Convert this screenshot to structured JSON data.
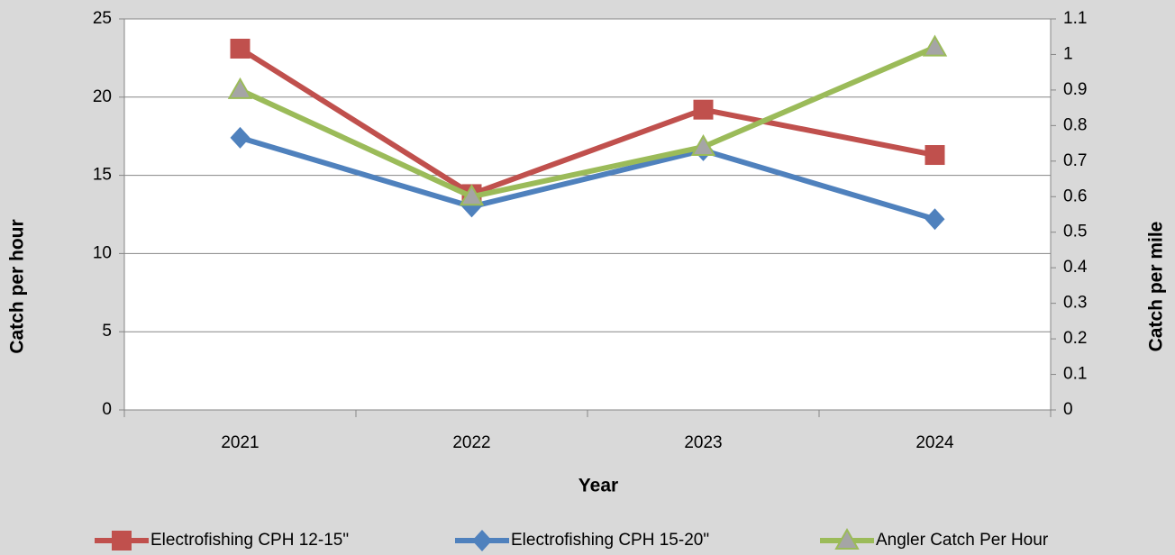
{
  "chart_data": {
    "type": "line",
    "x_label": "Year",
    "y_label": "Catch per hour",
    "y2_label": "Catch per mile",
    "categories": [
      "2021",
      "2022",
      "2023",
      "2024"
    ],
    "series": [
      {
        "name": "Electrofishing CPH 12-15\"",
        "color": "#c0504d",
        "marker": "square",
        "values": [
          23.1,
          13.8,
          19.2,
          16.3
        ]
      },
      {
        "name": "Electrofishing CPH 15-20\"",
        "color": "#4f81bd",
        "marker": "diamond",
        "values": [
          17.4,
          13.0,
          16.6,
          12.2
        ]
      },
      {
        "name": "Angler Catch Per Hour",
        "color": "#9bbb59",
        "marker": "triangle",
        "axis": "y2",
        "values": [
          0.9,
          0.6,
          0.74,
          1.02
        ]
      }
    ],
    "ylim": [
      0,
      25
    ],
    "yticks": [
      0,
      5,
      10,
      15,
      20,
      25
    ],
    "y2lim": [
      0,
      1.1
    ],
    "y2ticks": [
      0,
      0.1,
      0.2,
      0.3,
      0.4,
      0.5,
      0.6,
      0.7,
      0.8,
      0.9,
      1,
      1.1
    ],
    "grid": true,
    "legend": "bottom"
  }
}
